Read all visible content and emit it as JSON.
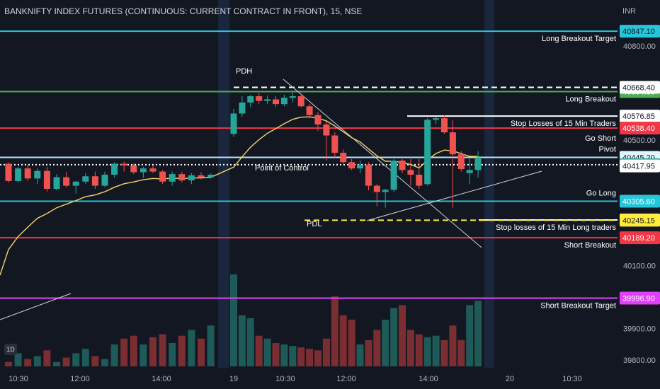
{
  "title": "BANKNIFTY INDEX FUTURES (CONTINUOUS: CURRENT CONTRACT IN FRONT), 15, NSE",
  "currency": "INR",
  "logo_text": "1D",
  "colors": {
    "background": "#131722",
    "up": "#26a69a",
    "down": "#ef5350",
    "up_volume": "#1e5a57",
    "down_volume": "#7a2e32",
    "ema": "#f6d36b"
  },
  "chart_data": {
    "type": "candlestick",
    "ylim": [
      39775,
      40915
    ],
    "y_ticks": [
      "40800.00",
      "40500.00",
      "40100.00",
      "39900.00",
      "39800.00"
    ],
    "x_ticks": [
      "10:30",
      "12:00",
      "14:00",
      "19",
      "10:30",
      "12:00",
      "14:00",
      "20",
      "10:30"
    ],
    "candles": [
      {
        "o": 40425,
        "h": 40430,
        "l": 40365,
        "c": 40370
      },
      {
        "o": 40370,
        "h": 40415,
        "l": 40365,
        "c": 40410
      },
      {
        "o": 40410,
        "h": 40420,
        "l": 40370,
        "c": 40378
      },
      {
        "o": 40378,
        "h": 40410,
        "l": 40360,
        "c": 40402
      },
      {
        "o": 40402,
        "h": 40415,
        "l": 40335,
        "c": 40345
      },
      {
        "o": 40345,
        "h": 40392,
        "l": 40340,
        "c": 40382
      },
      {
        "o": 40382,
        "h": 40398,
        "l": 40350,
        "c": 40355
      },
      {
        "o": 40355,
        "h": 40370,
        "l": 40330,
        "c": 40368
      },
      {
        "o": 40368,
        "h": 40395,
        "l": 40360,
        "c": 40385
      },
      {
        "o": 40385,
        "h": 40400,
        "l": 40345,
        "c": 40355
      },
      {
        "o": 40355,
        "h": 40400,
        "l": 40350,
        "c": 40390
      },
      {
        "o": 40390,
        "h": 40430,
        "l": 40380,
        "c": 40425
      },
      {
        "o": 40425,
        "h": 40432,
        "l": 40400,
        "c": 40420
      },
      {
        "o": 40420,
        "h": 40425,
        "l": 40392,
        "c": 40398
      },
      {
        "o": 40398,
        "h": 40415,
        "l": 40380,
        "c": 40410
      },
      {
        "o": 40410,
        "h": 40420,
        "l": 40395,
        "c": 40400
      },
      {
        "o": 40400,
        "h": 40405,
        "l": 40360,
        "c": 40368
      },
      {
        "o": 40368,
        "h": 40400,
        "l": 40355,
        "c": 40392
      },
      {
        "o": 40392,
        "h": 40400,
        "l": 40365,
        "c": 40372
      },
      {
        "o": 40372,
        "h": 40395,
        "l": 40360,
        "c": 40388
      },
      {
        "o": 40388,
        "h": 40398,
        "l": 40375,
        "c": 40382
      },
      {
        "o": 40382,
        "h": 40394,
        "l": 40378,
        "c": 40390
      },
      {
        "o": 40520,
        "h": 40600,
        "l": 40510,
        "c": 40585
      },
      {
        "o": 40585,
        "h": 40640,
        "l": 40575,
        "c": 40620
      },
      {
        "o": 40620,
        "h": 40645,
        "l": 40605,
        "c": 40640
      },
      {
        "o": 40640,
        "h": 40650,
        "l": 40615,
        "c": 40625
      },
      {
        "o": 40625,
        "h": 40642,
        "l": 40615,
        "c": 40630
      },
      {
        "o": 40630,
        "h": 40640,
        "l": 40605,
        "c": 40615
      },
      {
        "o": 40615,
        "h": 40645,
        "l": 40608,
        "c": 40635
      },
      {
        "o": 40635,
        "h": 40655,
        "l": 40620,
        "c": 40640
      },
      {
        "o": 40640,
        "h": 40648,
        "l": 40605,
        "c": 40608
      },
      {
        "o": 40608,
        "h": 40615,
        "l": 40570,
        "c": 40580
      },
      {
        "o": 40580,
        "h": 40590,
        "l": 40530,
        "c": 40550
      },
      {
        "o": 40550,
        "h": 40560,
        "l": 40435,
        "c": 40515
      },
      {
        "o": 40515,
        "h": 40525,
        "l": 40445,
        "c": 40460
      },
      {
        "o": 40460,
        "h": 40470,
        "l": 40425,
        "c": 40430
      },
      {
        "o": 40430,
        "h": 40440,
        "l": 40405,
        "c": 40410
      },
      {
        "o": 40410,
        "h": 40435,
        "l": 40395,
        "c": 40422
      },
      {
        "o": 40422,
        "h": 40430,
        "l": 40340,
        "c": 40355
      },
      {
        "o": 40355,
        "h": 40360,
        "l": 40290,
        "c": 40335
      },
      {
        "o": 40335,
        "h": 40345,
        "l": 40285,
        "c": 40342
      },
      {
        "o": 40342,
        "h": 40440,
        "l": 40335,
        "c": 40435
      },
      {
        "o": 40435,
        "h": 40440,
        "l": 40395,
        "c": 40405
      },
      {
        "o": 40405,
        "h": 40440,
        "l": 40355,
        "c": 40390
      },
      {
        "o": 40390,
        "h": 40440,
        "l": 40345,
        "c": 40355
      },
      {
        "o": 40360,
        "h": 40570,
        "l": 40355,
        "c": 40565
      },
      {
        "o": 40565,
        "h": 40575,
        "l": 40550,
        "c": 40570
      },
      {
        "o": 40570,
        "h": 40580,
        "l": 40520,
        "c": 40525
      },
      {
        "o": 40525,
        "h": 40565,
        "l": 40285,
        "c": 40455
      },
      {
        "o": 40455,
        "h": 40465,
        "l": 40400,
        "c": 40408
      },
      {
        "o": 40395,
        "h": 40445,
        "l": 40360,
        "c": 40405
      },
      {
        "o": 40405,
        "h": 40465,
        "l": 40380,
        "c": 40445
      }
    ],
    "volume": [
      3,
      9,
      5,
      7,
      11,
      3,
      6,
      9,
      12,
      7,
      5,
      15,
      19,
      21,
      15,
      20,
      22,
      16,
      21,
      25,
      19,
      28,
      63,
      35,
      33,
      21,
      19,
      16,
      15,
      14,
      13,
      12,
      11,
      19,
      48,
      35,
      32,
      15,
      18,
      25,
      32,
      40,
      42,
      25,
      22,
      20,
      21,
      18,
      28,
      18,
      42,
      45
    ],
    "horizontal_levels": [
      {
        "label": "Long Breakout Target",
        "price_label": "40847.10",
        "value": 40847.1,
        "color": "#26c6da",
        "label_color": "#26c6da"
      },
      {
        "label": "Long Breakout",
        "price_label": "40654.80",
        "value": 40654.8,
        "color": "#4caf50",
        "label_color": "#4caf50"
      },
      {
        "label": "",
        "price_label": "40668.40",
        "value": 40668.4,
        "color": "#ffffff",
        "label_color": "#ffffff",
        "style": "dashed"
      },
      {
        "label": "Stop Losses of 15 Min Traders",
        "price_label": "40576.85",
        "value": 40576.85,
        "color": "#ffffff",
        "label_color": "#ffffff"
      },
      {
        "label": "Go Short",
        "price_label": "40538.40",
        "value": 40538.4,
        "color": "#f23645",
        "label_color": "#f23645"
      },
      {
        "label": "Pivot",
        "price_label": "40445.20",
        "value": 40445.2,
        "color": "#b3e5fc",
        "label_color": "#e1f5fe"
      },
      {
        "label": "",
        "price_label": "40422.00",
        "value": 40422.0,
        "color": "#ffffff",
        "label_color": "#26a69a",
        "style": "dotted"
      },
      {
        "label": "",
        "price_label": "40417.95",
        "value": 40417.95,
        "color": "#ffffff",
        "label_color": "#ffffff"
      },
      {
        "label": "Go Long",
        "price_label": "40305.60",
        "value": 40305.6,
        "color": "#26c6da",
        "label_color": "#26c6da"
      },
      {
        "label": "Stop losses of 15 Min Long traders",
        "price_label": "40245.95",
        "value": 40245.95,
        "color": "#ffffff",
        "label_color": "#ffffff"
      },
      {
        "label": "",
        "price_label": "40245.15",
        "value": 40245.15,
        "color": "#ffeb3b",
        "label_color": "#ffeb3b",
        "style": "dashed"
      },
      {
        "label": "Short Breakout",
        "price_label": "40189.20",
        "value": 40189.2,
        "color": "#f23645",
        "label_color": "#f23645"
      },
      {
        "label": "Short Breakout Target",
        "price_label": "39996.90",
        "value": 39996.9,
        "color": "#e040fb",
        "label_color": "#e040fb"
      }
    ],
    "annotations": [
      {
        "text": "PDH"
      },
      {
        "text": "PDL"
      },
      {
        "text": "Point of Control"
      }
    ]
  }
}
